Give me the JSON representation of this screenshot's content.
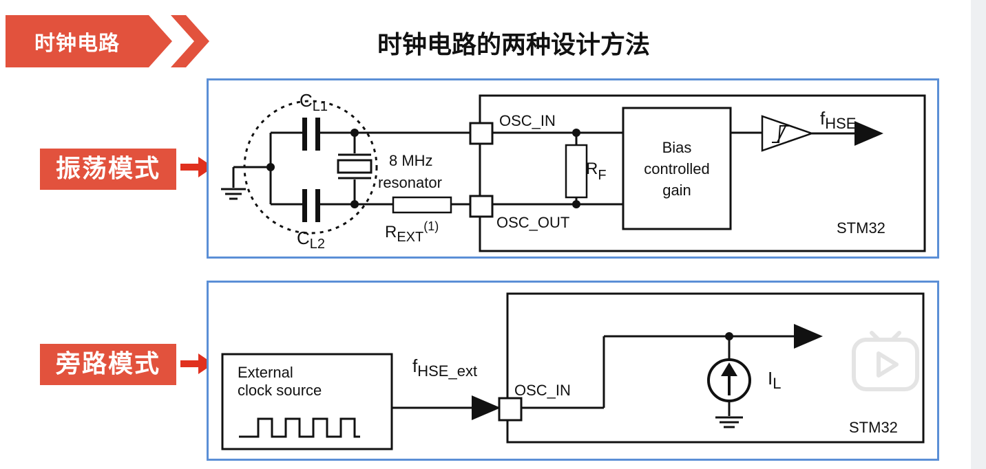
{
  "header": {
    "tag_label": "时钟电路",
    "title": "时钟电路的两种设计方法"
  },
  "modes": {
    "oscillator": "振荡模式",
    "bypass": "旁路模式"
  },
  "top_diagram": {
    "cl1": {
      "main": "C",
      "sub": "L1"
    },
    "cl2": {
      "main": "C",
      "sub": "L2"
    },
    "freq": "8 MHz",
    "resonator": "resonator",
    "rext": {
      "main": "R",
      "sub": "EXT",
      "sup": "(1)"
    },
    "osc_in": "OSC_IN",
    "osc_out": "OSC_OUT",
    "rf": {
      "main": "R",
      "sub": "F"
    },
    "bias_lines": [
      "Bias",
      "controlled",
      "gain"
    ],
    "fhse": {
      "main": "f",
      "sub": "HSE"
    },
    "chip": "STM32"
  },
  "bottom_diagram": {
    "source_lines": [
      "External",
      "clock source"
    ],
    "fhse_ext": {
      "main": "f",
      "sub": "HSE_ext"
    },
    "osc_in": "OSC_IN",
    "il": {
      "main": "I",
      "sub": "L"
    },
    "chip": "STM32"
  },
  "colors": {
    "accent_red": "#e2523d",
    "panel_border": "#5b8fd6"
  },
  "icons": [
    "play-icon",
    "red-arrow-icon",
    "ground-icon"
  ]
}
